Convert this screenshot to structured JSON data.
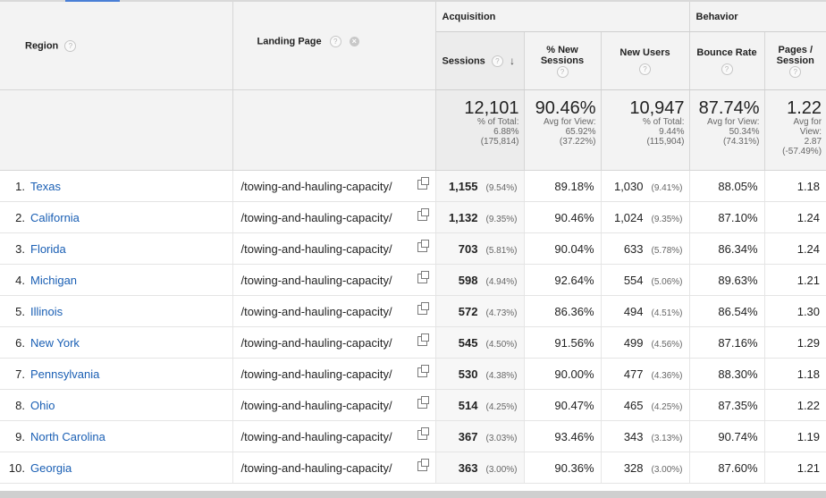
{
  "columns": {
    "region": "Region",
    "landing_page": "Landing Page",
    "group_acquisition": "Acquisition",
    "group_behavior": "Behavior",
    "sessions": "Sessions",
    "new_sessions": "% New Sessions",
    "new_users": "New Users",
    "bounce_rate": "Bounce Rate",
    "pages_session": "Pages / Session",
    "help_glyph": "?",
    "remove_glyph": "×",
    "sort_glyph": "↓"
  },
  "totals": {
    "sessions": {
      "value": "12,101",
      "l1": "% of Total:",
      "l2": "6.88%",
      "l3": "(175,814)"
    },
    "new_sessions": {
      "value": "90.46%",
      "l1": "Avg for View:",
      "l2": "65.92%",
      "l3": "(37.22%)"
    },
    "new_users": {
      "value": "10,947",
      "l1": "% of Total:",
      "l2": "9.44%",
      "l3": "(115,904)"
    },
    "bounce_rate": {
      "value": "87.74%",
      "l1": "Avg for View:",
      "l2": "50.34%",
      "l3": "(74.31%)"
    },
    "pages_session": {
      "value": "1.22",
      "l1": "Avg for",
      "l2": "View:",
      "l3": "2.87",
      "l4": "(-57.49%)"
    }
  },
  "rows": [
    {
      "idx": "1.",
      "region": "Texas",
      "landing": "/towing-and-hauling-capacity/",
      "sessions": "1,155",
      "sessions_pct": "(9.54%)",
      "new_sessions": "89.18%",
      "new_users": "1,030",
      "new_users_pct": "(9.41%)",
      "bounce": "88.05%",
      "pages": "1.18"
    },
    {
      "idx": "2.",
      "region": "California",
      "landing": "/towing-and-hauling-capacity/",
      "sessions": "1,132",
      "sessions_pct": "(9.35%)",
      "new_sessions": "90.46%",
      "new_users": "1,024",
      "new_users_pct": "(9.35%)",
      "bounce": "87.10%",
      "pages": "1.24"
    },
    {
      "idx": "3.",
      "region": "Florida",
      "landing": "/towing-and-hauling-capacity/",
      "sessions": "703",
      "sessions_pct": "(5.81%)",
      "new_sessions": "90.04%",
      "new_users": "633",
      "new_users_pct": "(5.78%)",
      "bounce": "86.34%",
      "pages": "1.24"
    },
    {
      "idx": "4.",
      "region": "Michigan",
      "landing": "/towing-and-hauling-capacity/",
      "sessions": "598",
      "sessions_pct": "(4.94%)",
      "new_sessions": "92.64%",
      "new_users": "554",
      "new_users_pct": "(5.06%)",
      "bounce": "89.63%",
      "pages": "1.21"
    },
    {
      "idx": "5.",
      "region": "Illinois",
      "landing": "/towing-and-hauling-capacity/",
      "sessions": "572",
      "sessions_pct": "(4.73%)",
      "new_sessions": "86.36%",
      "new_users": "494",
      "new_users_pct": "(4.51%)",
      "bounce": "86.54%",
      "pages": "1.30"
    },
    {
      "idx": "6.",
      "region": "New York",
      "landing": "/towing-and-hauling-capacity/",
      "sessions": "545",
      "sessions_pct": "(4.50%)",
      "new_sessions": "91.56%",
      "new_users": "499",
      "new_users_pct": "(4.56%)",
      "bounce": "87.16%",
      "pages": "1.29"
    },
    {
      "idx": "7.",
      "region": "Pennsylvania",
      "landing": "/towing-and-hauling-capacity/",
      "sessions": "530",
      "sessions_pct": "(4.38%)",
      "new_sessions": "90.00%",
      "new_users": "477",
      "new_users_pct": "(4.36%)",
      "bounce": "88.30%",
      "pages": "1.18"
    },
    {
      "idx": "8.",
      "region": "Ohio",
      "landing": "/towing-and-hauling-capacity/",
      "sessions": "514",
      "sessions_pct": "(4.25%)",
      "new_sessions": "90.47%",
      "new_users": "465",
      "new_users_pct": "(4.25%)",
      "bounce": "87.35%",
      "pages": "1.22"
    },
    {
      "idx": "9.",
      "region": "North Carolina",
      "landing": "/towing-and-hauling-capacity/",
      "sessions": "367",
      "sessions_pct": "(3.03%)",
      "new_sessions": "93.46%",
      "new_users": "343",
      "new_users_pct": "(3.13%)",
      "bounce": "90.74%",
      "pages": "1.19"
    },
    {
      "idx": "10.",
      "region": "Georgia",
      "landing": "/towing-and-hauling-capacity/",
      "sessions": "363",
      "sessions_pct": "(3.00%)",
      "new_sessions": "90.36%",
      "new_users": "328",
      "new_users_pct": "(3.00%)",
      "bounce": "87.60%",
      "pages": "1.21"
    }
  ],
  "colors": {
    "link": "#1a5fb4",
    "header_bg": "#f3f3f3",
    "accent": "#4a7fd6"
  }
}
